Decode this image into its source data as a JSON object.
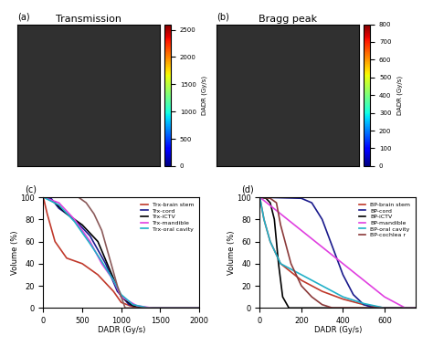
{
  "chart_data": [
    {
      "type": "image",
      "panel": "(a)",
      "title": "Transmission",
      "colorbar": {
        "label": "DADR (Gy/s)",
        "range": [
          0,
          2600
        ],
        "ticks": [
          0,
          500,
          1000,
          1500,
          2000,
          2500
        ]
      }
    },
    {
      "type": "image",
      "panel": "(b)",
      "title": "Bragg peak",
      "colorbar": {
        "label": "DADR (Gy/s)",
        "range": [
          0,
          800
        ],
        "ticks": [
          0,
          100,
          200,
          300,
          400,
          500,
          600,
          700,
          800
        ]
      }
    },
    {
      "type": "line",
      "panel": "(c)",
      "x_label": "DADR (Gy/s)",
      "y_label": "Volume (%)",
      "xlim": [
        0,
        2000
      ],
      "xticks": [
        0,
        500,
        1000,
        1500,
        2000
      ],
      "ylim": [
        0,
        100
      ],
      "yticks": [
        0,
        20,
        40,
        60,
        80,
        100
      ],
      "legend": "upper right",
      "series": [
        {
          "name": "Trx-brain stem",
          "color": "#c0392b",
          "x": [
            0,
            50,
            150,
            300,
            500,
            700,
            900,
            1000,
            1150,
            1300,
            2000
          ],
          "values": [
            100,
            85,
            60,
            45,
            40,
            30,
            15,
            5,
            1,
            0,
            0
          ]
        },
        {
          "name": "Trx-cord",
          "color": "#1a1a8c",
          "x": [
            0,
            100,
            200,
            400,
            600,
            800,
            950,
            1100,
            1300,
            2000
          ],
          "values": [
            100,
            99,
            90,
            80,
            65,
            40,
            15,
            3,
            0,
            0
          ]
        },
        {
          "name": "Trx-iCTV",
          "color": "#000000",
          "x": [
            0,
            50,
            150,
            300,
            500,
            700,
            850,
            1000,
            1150,
            1300,
            2000
          ],
          "values": [
            100,
            99,
            95,
            85,
            75,
            60,
            35,
            10,
            2,
            0,
            0
          ]
        },
        {
          "name": "Trx-mandible",
          "color": "#e040e0",
          "x": [
            0,
            200,
            400,
            600,
            750,
            900,
            1000,
            1200,
            1400,
            2000
          ],
          "values": [
            100,
            95,
            80,
            60,
            40,
            25,
            10,
            2,
            0,
            0
          ]
        },
        {
          "name": "Trx-oral cavity",
          "color": "#20b0c8",
          "x": [
            0,
            200,
            400,
            600,
            750,
            900,
            1000,
            1150,
            1350,
            2000
          ],
          "values": [
            100,
            93,
            78,
            58,
            42,
            25,
            12,
            3,
            0,
            0
          ]
        },
        {
          "name": null,
          "color": "#8b5a5a",
          "x": [
            0,
            450,
            550,
            650,
            750,
            850,
            950,
            1050,
            2000
          ],
          "values": [
            100,
            100,
            95,
            85,
            70,
            45,
            20,
            0,
            0
          ]
        }
      ]
    },
    {
      "type": "line",
      "panel": "(d)",
      "x_label": "DADR (Gy/s)",
      "y_label": "Volume (%)",
      "xlim": [
        0,
        750
      ],
      "xticks": [
        0,
        200,
        400,
        600
      ],
      "ylim": [
        0,
        100
      ],
      "yticks": [
        0,
        20,
        40,
        60,
        80,
        100
      ],
      "legend": "upper right",
      "series": [
        {
          "name": "BP-brain stem",
          "color": "#c0392b",
          "x": [
            0,
            20,
            50,
            100,
            200,
            300,
            400,
            500,
            600,
            750
          ],
          "values": [
            100,
            80,
            60,
            40,
            25,
            15,
            8,
            3,
            0,
            0
          ]
        },
        {
          "name": "BP-cord",
          "color": "#1a1a8c",
          "x": [
            0,
            200,
            250,
            300,
            350,
            400,
            450,
            500,
            550,
            750
          ],
          "values": [
            100,
            99,
            95,
            80,
            55,
            30,
            12,
            3,
            0,
            0
          ]
        },
        {
          "name": "BP-iCTV",
          "color": "#000000",
          "x": [
            0,
            30,
            50,
            70,
            90,
            110,
            140,
            750
          ],
          "values": [
            100,
            99,
            95,
            80,
            40,
            10,
            0,
            0
          ]
        },
        {
          "name": "BP-mandible",
          "color": "#e040e0",
          "x": [
            0,
            100,
            200,
            300,
            400,
            500,
            600,
            700,
            750
          ],
          "values": [
            100,
            85,
            70,
            55,
            40,
            25,
            10,
            0,
            0
          ]
        },
        {
          "name": "BP-oral cavity",
          "color": "#20b0c8",
          "x": [
            0,
            20,
            50,
            100,
            200,
            300,
            400,
            500,
            600,
            750
          ],
          "values": [
            100,
            80,
            60,
            40,
            30,
            20,
            10,
            4,
            0,
            0
          ]
        },
        {
          "name": "BP-cochlea r",
          "color": "#8b3a3a",
          "x": [
            0,
            50,
            80,
            100,
            150,
            200,
            250,
            300,
            350,
            750
          ],
          "values": [
            100,
            99,
            95,
            75,
            40,
            20,
            10,
            3,
            0,
            0
          ]
        }
      ]
    }
  ]
}
